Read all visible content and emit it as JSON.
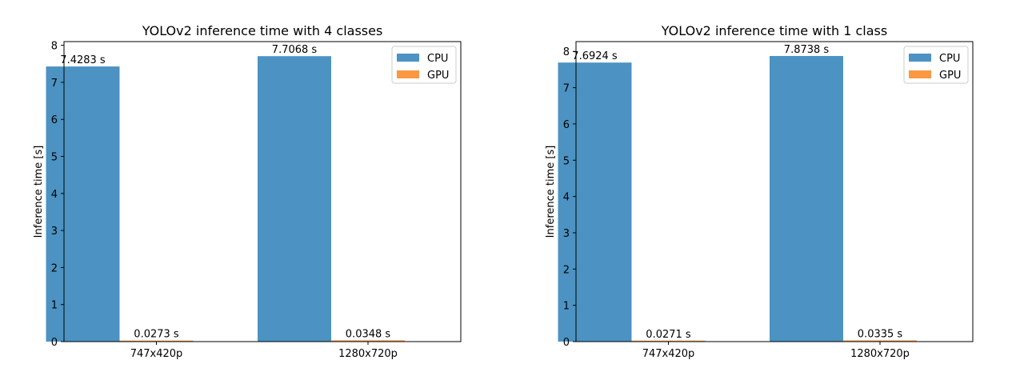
{
  "chart_data": [
    {
      "type": "bar",
      "title": "YOLOv2 inference time with 4 classes",
      "xlabel": "",
      "ylabel": "Inference time [s]",
      "categories": [
        "747x420p",
        "1280x720p"
      ],
      "ylim": [
        0,
        8.1
      ],
      "yticks": [
        0,
        1,
        2,
        3,
        4,
        5,
        6,
        7,
        8
      ],
      "grid": false,
      "legend_position": "top-right",
      "series": [
        {
          "name": "CPU",
          "color": "#4c93c3",
          "values": [
            7.4283,
            7.7068
          ],
          "labels": [
            "7.4283 s",
            "7.7068 s"
          ]
        },
        {
          "name": "GPU",
          "color": "#fb9844",
          "values": [
            0.0273,
            0.0348
          ],
          "labels": [
            "0.0273 s",
            "0.0348 s"
          ]
        }
      ]
    },
    {
      "type": "bar",
      "title": "YOLOv2 inference time with 1 class",
      "xlabel": "",
      "ylabel": "Inference time [s]",
      "categories": [
        "747x420p",
        "1280x720p"
      ],
      "ylim": [
        0,
        8.27
      ],
      "yticks": [
        0,
        1,
        2,
        3,
        4,
        5,
        6,
        7,
        8
      ],
      "grid": false,
      "legend_position": "top-right",
      "series": [
        {
          "name": "CPU",
          "color": "#4c93c3",
          "values": [
            7.6924,
            7.8738
          ],
          "labels": [
            "7.6924 s",
            "7.8738 s"
          ]
        },
        {
          "name": "GPU",
          "color": "#fb9844",
          "values": [
            0.0271,
            0.0335
          ],
          "labels": [
            "0.0271 s",
            "0.0335 s"
          ]
        }
      ]
    }
  ]
}
